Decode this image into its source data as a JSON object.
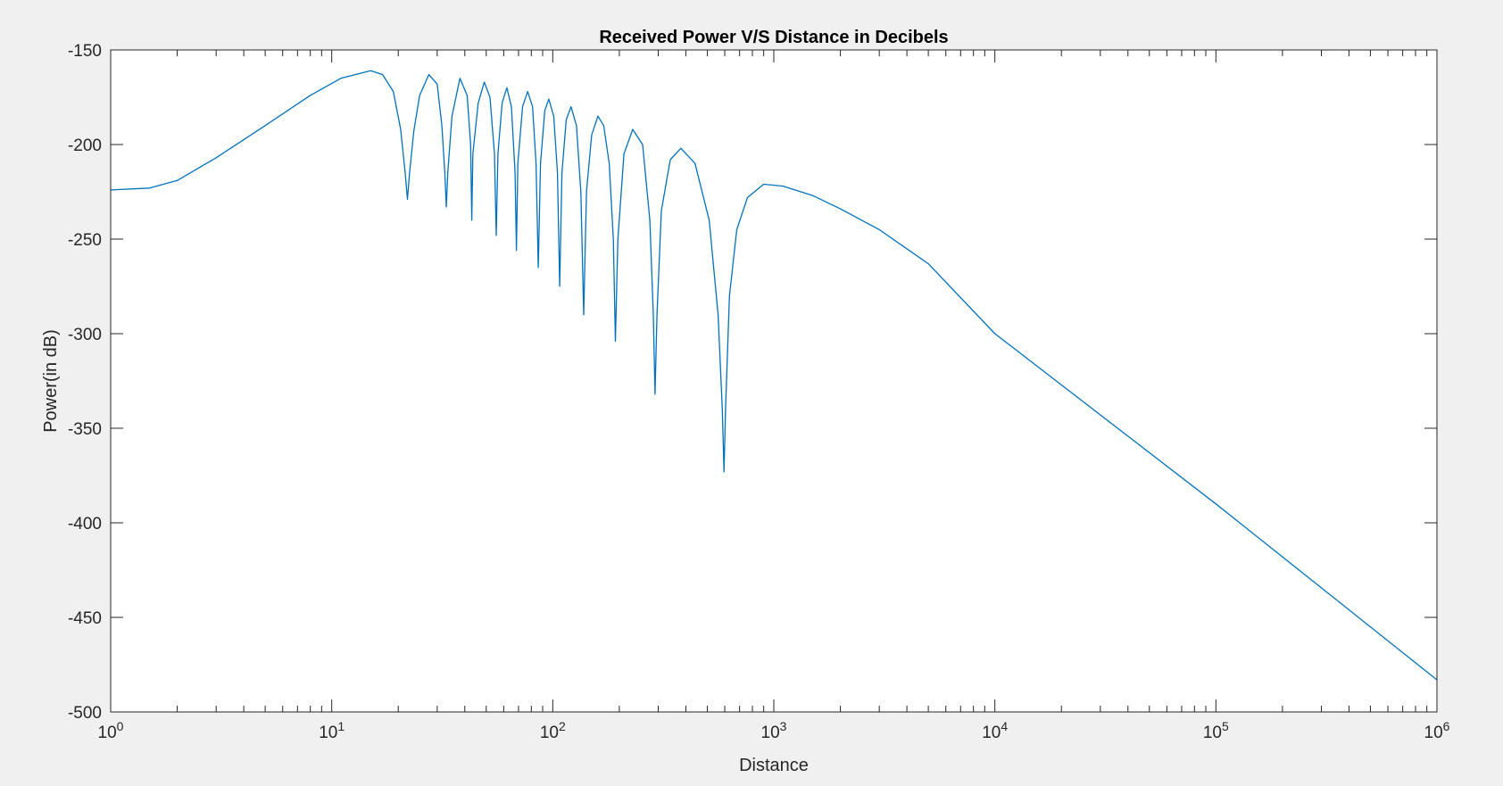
{
  "chart_data": {
    "type": "line",
    "title": "Received Power V/S Distance in Decibels",
    "xlabel": "Distance",
    "ylabel": "Power(in dB)",
    "xscale": "log",
    "xlim": [
      1,
      1000000
    ],
    "ylim": [
      -500,
      -150
    ],
    "grid": false,
    "colors": {
      "line": "#0072bd",
      "axes": "#262626",
      "plot_bg": "#ffffff",
      "figure_bg": "#f0f0f0"
    },
    "x_ticks": [
      {
        "base": "10",
        "exp": "0",
        "value": 1
      },
      {
        "base": "10",
        "exp": "1",
        "value": 10
      },
      {
        "base": "10",
        "exp": "2",
        "value": 100
      },
      {
        "base": "10",
        "exp": "3",
        "value": 1000
      },
      {
        "base": "10",
        "exp": "4",
        "value": 10000
      },
      {
        "base": "10",
        "exp": "5",
        "value": 100000
      },
      {
        "base": "10",
        "exp": "6",
        "value": 1000000
      }
    ],
    "y_ticks": [
      {
        "label": "-150",
        "value": -150
      },
      {
        "label": "-200",
        "value": -200
      },
      {
        "label": "-250",
        "value": -250
      },
      {
        "label": "-300",
        "value": -300
      },
      {
        "label": "-350",
        "value": -350
      },
      {
        "label": "-400",
        "value": -400
      },
      {
        "label": "-450",
        "value": -450
      },
      {
        "label": "-500",
        "value": -500
      }
    ],
    "series": [
      {
        "values": [
          [
            1,
            -224
          ],
          [
            1.5,
            -223
          ],
          [
            2,
            -219
          ],
          [
            3,
            -207
          ],
          [
            5,
            -190
          ],
          [
            8,
            -174
          ],
          [
            11,
            -165
          ],
          [
            15,
            -161
          ],
          [
            17,
            -163
          ],
          [
            19,
            -172
          ],
          [
            20.5,
            -192
          ],
          [
            21.5,
            -215
          ],
          [
            22,
            -229
          ],
          [
            22.5,
            -215
          ],
          [
            23.5,
            -193
          ],
          [
            25,
            -174
          ],
          [
            27.5,
            -163
          ],
          [
            30,
            -168
          ],
          [
            31.5,
            -190
          ],
          [
            32.5,
            -215
          ],
          [
            33,
            -233
          ],
          [
            33.5,
            -215
          ],
          [
            35,
            -185
          ],
          [
            38,
            -165
          ],
          [
            41,
            -174
          ],
          [
            42.5,
            -200
          ],
          [
            43,
            -240
          ],
          [
            43.5,
            -205
          ],
          [
            46,
            -178
          ],
          [
            49,
            -167
          ],
          [
            52,
            -175
          ],
          [
            54.5,
            -205
          ],
          [
            55.5,
            -248
          ],
          [
            56.5,
            -205
          ],
          [
            59,
            -178
          ],
          [
            62,
            -170
          ],
          [
            65,
            -180
          ],
          [
            67.5,
            -215
          ],
          [
            68.5,
            -256
          ],
          [
            69.5,
            -210
          ],
          [
            73,
            -180
          ],
          [
            77,
            -172
          ],
          [
            81,
            -180
          ],
          [
            84,
            -210
          ],
          [
            86,
            -265
          ],
          [
            88,
            -210
          ],
          [
            92,
            -182
          ],
          [
            96,
            -176
          ],
          [
            101,
            -185
          ],
          [
            105,
            -215
          ],
          [
            107.5,
            -275
          ],
          [
            110,
            -215
          ],
          [
            115,
            -187
          ],
          [
            121,
            -180
          ],
          [
            128,
            -190
          ],
          [
            134,
            -225
          ],
          [
            138,
            -290
          ],
          [
            142,
            -225
          ],
          [
            150,
            -195
          ],
          [
            160,
            -185
          ],
          [
            170,
            -190
          ],
          [
            180,
            -210
          ],
          [
            188,
            -250
          ],
          [
            192,
            -304
          ],
          [
            197,
            -250
          ],
          [
            210,
            -205
          ],
          [
            230,
            -192
          ],
          [
            255,
            -200
          ],
          [
            275,
            -240
          ],
          [
            285,
            -290
          ],
          [
            290,
            -332
          ],
          [
            296,
            -290
          ],
          [
            310,
            -235
          ],
          [
            340,
            -208
          ],
          [
            380,
            -202
          ],
          [
            440,
            -210
          ],
          [
            510,
            -240
          ],
          [
            560,
            -290
          ],
          [
            585,
            -340
          ],
          [
            595,
            -373
          ],
          [
            605,
            -340
          ],
          [
            630,
            -280
          ],
          [
            680,
            -245
          ],
          [
            760,
            -228
          ],
          [
            900,
            -221
          ],
          [
            1100,
            -222
          ],
          [
            1500,
            -227
          ],
          [
            2000,
            -234
          ],
          [
            3000,
            -245
          ],
          [
            5000,
            -263
          ],
          [
            10000,
            -300
          ],
          [
            100000,
            -390
          ],
          [
            1000000,
            -483
          ]
        ]
      }
    ]
  }
}
